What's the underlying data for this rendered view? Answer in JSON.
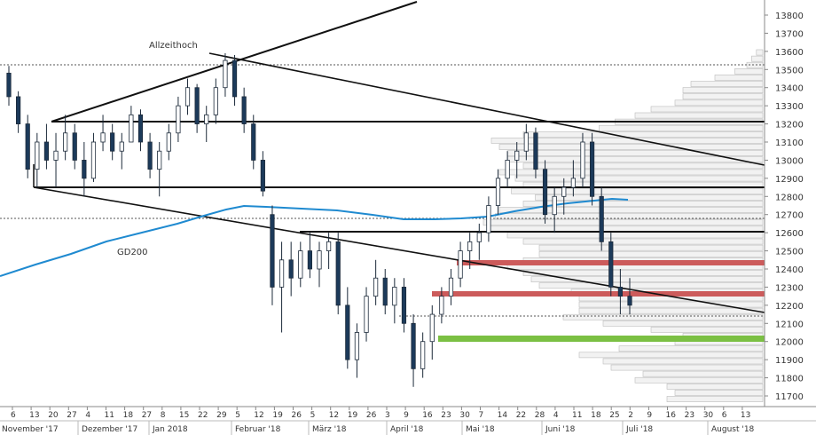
{
  "chart_data": {
    "type": "candlestick",
    "title": "",
    "y_axis": {
      "min": 11650,
      "max": 13850,
      "ticks": [
        13800,
        13700,
        13600,
        13500,
        13400,
        13300,
        13200,
        13100,
        13000,
        12900,
        12800,
        12700,
        12600,
        12500,
        12400,
        12300,
        12200,
        12100,
        12000,
        11900,
        11800,
        11700
      ]
    },
    "x_day_ticks": [
      "6",
      "13",
      "20",
      "27",
      "4",
      "11",
      "18",
      "27",
      "8",
      "15",
      "22",
      "29",
      "5",
      "12",
      "19",
      "26",
      "5",
      "12",
      "19",
      "26",
      "3",
      "9",
      "16",
      "23",
      "30",
      "7",
      "14",
      "22",
      "28",
      "4",
      "11",
      "18",
      "25",
      "2",
      "9",
      "16",
      "23",
      "30",
      "6",
      "13"
    ],
    "month_labels": [
      "November '17",
      "Dezember '17",
      "Jan 2018",
      "Februar '18",
      "März '18",
      "April '18",
      "Mai '18",
      "Juni '18",
      "Juli '18",
      "August '18"
    ],
    "annotations": {
      "all_time_high": "Allzeithoch",
      "ma200": "GD200"
    },
    "lines": {
      "resistance_upper": [
        13200,
        13200
      ],
      "horizontal_levels": [
        13200,
        12850,
        12600
      ],
      "dashed_levels": [
        13520,
        12680,
        12150
      ],
      "red_zones": [
        12430,
        12260
      ],
      "green_zone": 12010,
      "trend_from_ath": {
        "from": 13590,
        "to": 12960
      },
      "trend_lower": {
        "from": 12850,
        "to": 12150
      }
    },
    "ohlc_approx": [
      {
        "o": 13480,
        "h": 13520,
        "l": 13300,
        "c": 13350
      },
      {
        "o": 13350,
        "h": 13380,
        "l": 13150,
        "c": 13200
      },
      {
        "o": 13200,
        "h": 13250,
        "l": 12900,
        "c": 12950
      },
      {
        "o": 12950,
        "h": 13150,
        "l": 12850,
        "c": 13100
      },
      {
        "o": 13100,
        "h": 13200,
        "l": 12950,
        "c": 13000
      },
      {
        "o": 13000,
        "h": 13150,
        "l": 12850,
        "c": 13050
      },
      {
        "o": 13050,
        "h": 13250,
        "l": 13000,
        "c": 13150
      },
      {
        "o": 13150,
        "h": 13200,
        "l": 12950,
        "c": 13000
      },
      {
        "o": 13000,
        "h": 13100,
        "l": 12800,
        "c": 12900
      },
      {
        "o": 12900,
        "h": 13150,
        "l": 12880,
        "c": 13100
      },
      {
        "o": 13100,
        "h": 13250,
        "l": 13050,
        "c": 13150
      },
      {
        "o": 13150,
        "h": 13200,
        "l": 13000,
        "c": 13050
      },
      {
        "o": 13050,
        "h": 13150,
        "l": 12950,
        "c": 13100
      },
      {
        "o": 13100,
        "h": 13300,
        "l": 13100,
        "c": 13250
      },
      {
        "o": 13250,
        "h": 13280,
        "l": 13050,
        "c": 13100
      },
      {
        "o": 13100,
        "h": 13150,
        "l": 12900,
        "c": 12950
      },
      {
        "o": 12950,
        "h": 13100,
        "l": 12800,
        "c": 13050
      },
      {
        "o": 13050,
        "h": 13200,
        "l": 13000,
        "c": 13150
      },
      {
        "o": 13150,
        "h": 13350,
        "l": 13100,
        "c": 13300
      },
      {
        "o": 13300,
        "h": 13450,
        "l": 13250,
        "c": 13400
      },
      {
        "o": 13400,
        "h": 13420,
        "l": 13150,
        "c": 13200
      },
      {
        "o": 13200,
        "h": 13300,
        "l": 13100,
        "c": 13250
      },
      {
        "o": 13250,
        "h": 13450,
        "l": 13200,
        "c": 13400
      },
      {
        "o": 13400,
        "h": 13590,
        "l": 13350,
        "c": 13550
      },
      {
        "o": 13550,
        "h": 13580,
        "l": 13300,
        "c": 13350
      },
      {
        "o": 13350,
        "h": 13400,
        "l": 13150,
        "c": 13200
      },
      {
        "o": 13200,
        "h": 13250,
        "l": 12950,
        "c": 13000
      },
      {
        "o": 13000,
        "h": 13050,
        "l": 12800,
        "c": 12830
      },
      {
        "o": 12700,
        "h": 12750,
        "l": 12200,
        "c": 12300
      },
      {
        "o": 12300,
        "h": 12550,
        "l": 12050,
        "c": 12450
      },
      {
        "o": 12450,
        "h": 12550,
        "l": 12250,
        "c": 12350
      },
      {
        "o": 12350,
        "h": 12550,
        "l": 12300,
        "c": 12500
      },
      {
        "o": 12500,
        "h": 12600,
        "l": 12350,
        "c": 12400
      },
      {
        "o": 12400,
        "h": 12550,
        "l": 12300,
        "c": 12500
      },
      {
        "o": 12500,
        "h": 12600,
        "l": 12400,
        "c": 12550
      },
      {
        "o": 12550,
        "h": 12600,
        "l": 12150,
        "c": 12200
      },
      {
        "o": 12200,
        "h": 12300,
        "l": 11850,
        "c": 11900
      },
      {
        "o": 11900,
        "h": 12100,
        "l": 11800,
        "c": 12050
      },
      {
        "o": 12050,
        "h": 12300,
        "l": 12000,
        "c": 12250
      },
      {
        "o": 12250,
        "h": 12450,
        "l": 12200,
        "c": 12350
      },
      {
        "o": 12350,
        "h": 12400,
        "l": 12150,
        "c": 12200
      },
      {
        "o": 12200,
        "h": 12350,
        "l": 12100,
        "c": 12300
      },
      {
        "o": 12300,
        "h": 12350,
        "l": 12050,
        "c": 12100
      },
      {
        "o": 12100,
        "h": 12150,
        "l": 11750,
        "c": 11850
      },
      {
        "o": 11850,
        "h": 12050,
        "l": 11800,
        "c": 12000
      },
      {
        "o": 12000,
        "h": 12200,
        "l": 11900,
        "c": 12150
      },
      {
        "o": 12150,
        "h": 12300,
        "l": 12100,
        "c": 12250
      },
      {
        "o": 12250,
        "h": 12400,
        "l": 12200,
        "c": 12350
      },
      {
        "o": 12350,
        "h": 12550,
        "l": 12300,
        "c": 12500
      },
      {
        "o": 12500,
        "h": 12600,
        "l": 12400,
        "c": 12550
      },
      {
        "o": 12550,
        "h": 12650,
        "l": 12450,
        "c": 12600
      },
      {
        "o": 12600,
        "h": 12800,
        "l": 12550,
        "c": 12750
      },
      {
        "o": 12750,
        "h": 12950,
        "l": 12700,
        "c": 12900
      },
      {
        "o": 12900,
        "h": 13050,
        "l": 12850,
        "c": 13000
      },
      {
        "o": 13000,
        "h": 13100,
        "l": 12900,
        "c": 13050
      },
      {
        "o": 13050,
        "h": 13200,
        "l": 13000,
        "c": 13150
      },
      {
        "o": 13150,
        "h": 13180,
        "l": 12900,
        "c": 12950
      },
      {
        "o": 12950,
        "h": 13000,
        "l": 12650,
        "c": 12700
      },
      {
        "o": 12700,
        "h": 12850,
        "l": 12600,
        "c": 12800
      },
      {
        "o": 12800,
        "h": 12900,
        "l": 12700,
        "c": 12850
      },
      {
        "o": 12850,
        "h": 13000,
        "l": 12800,
        "c": 12900
      },
      {
        "o": 12900,
        "h": 13150,
        "l": 12850,
        "c": 13100
      },
      {
        "o": 13100,
        "h": 13150,
        "l": 12750,
        "c": 12800
      },
      {
        "o": 12800,
        "h": 12850,
        "l": 12500,
        "c": 12550
      },
      {
        "o": 12550,
        "h": 12600,
        "l": 12250,
        "c": 12300
      },
      {
        "o": 12300,
        "h": 12400,
        "l": 12150,
        "c": 12250
      },
      {
        "o": 12250,
        "h": 12350,
        "l": 12150,
        "c": 12200
      }
    ]
  }
}
